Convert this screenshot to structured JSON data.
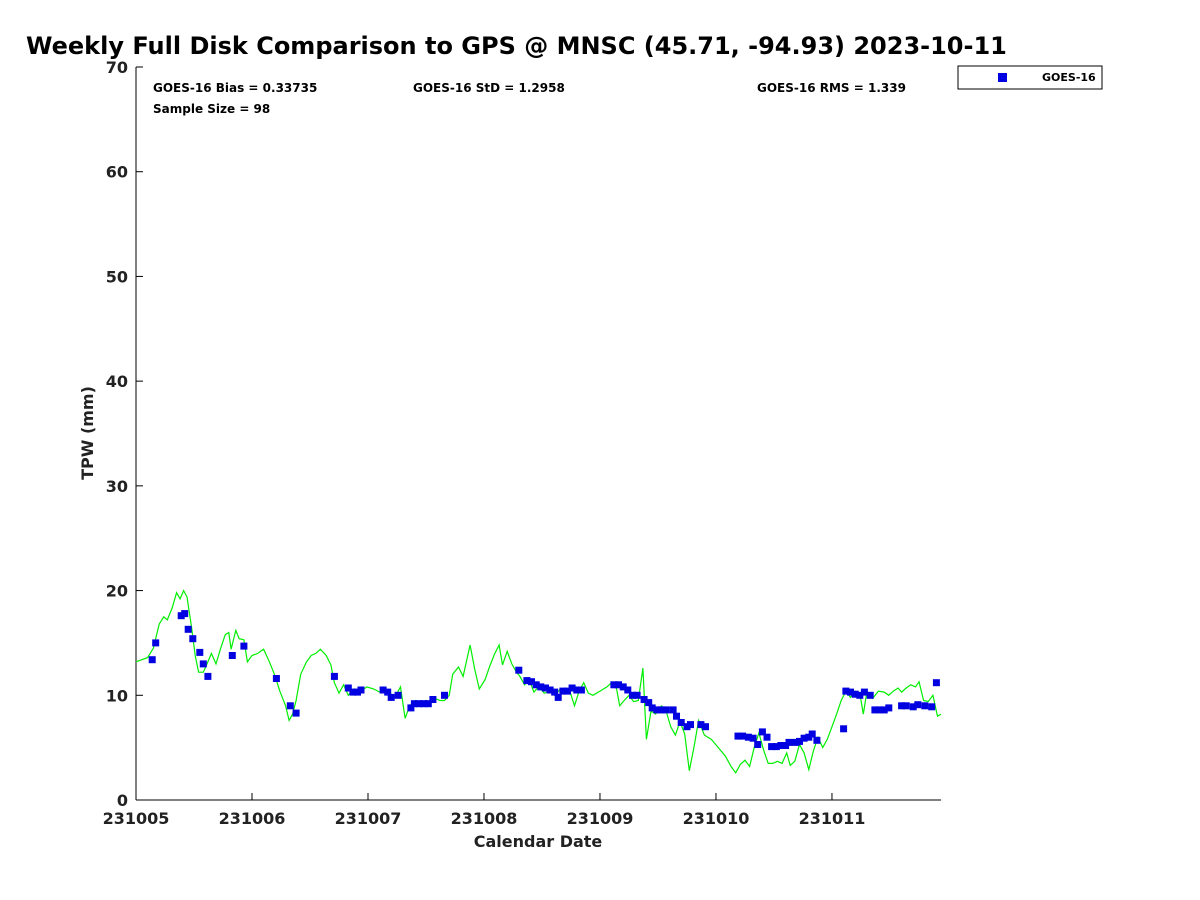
{
  "chart_data": {
    "type": "scatter",
    "title": "Weekly Full Disk Comparison to GPS @ MNSC (45.71, -94.93) 2023-10-11",
    "xlabel": "Calendar Date",
    "ylabel": "TPW (mm)",
    "xlim": [
      0,
      6.94
    ],
    "ylim": [
      0,
      70
    ],
    "x_tick_values": [
      0,
      1,
      2,
      3,
      4,
      5,
      6
    ],
    "x_tick_labels": [
      "231005",
      "231006",
      "231007",
      "231008",
      "231009",
      "231010",
      "231011"
    ],
    "y_ticks": [
      0,
      10,
      20,
      30,
      40,
      50,
      60,
      70
    ],
    "grid": false,
    "legend_position": "top-right",
    "stats": {
      "bias": "GOES-16 Bias = 0.33735",
      "std": "GOES-16 StD = 1.2958",
      "rms": "GOES-16 RMS = 1.339",
      "sample_size": "Sample Size = 98"
    },
    "series": [
      {
        "name": "GOES-16",
        "marker": "square",
        "color": "#0000e0",
        "points": [
          [
            0.14,
            13.4
          ],
          [
            0.17,
            15.0
          ],
          [
            0.39,
            17.6
          ],
          [
            0.42,
            17.8
          ],
          [
            0.45,
            16.3
          ],
          [
            0.49,
            15.4
          ],
          [
            0.55,
            14.1
          ],
          [
            0.58,
            13.0
          ],
          [
            0.62,
            11.8
          ],
          [
            0.83,
            13.8
          ],
          [
            0.93,
            14.7
          ],
          [
            1.21,
            11.6
          ],
          [
            1.33,
            9.0
          ],
          [
            1.38,
            8.3
          ],
          [
            1.71,
            11.8
          ],
          [
            1.83,
            10.7
          ],
          [
            1.87,
            10.3
          ],
          [
            1.91,
            10.3
          ],
          [
            1.94,
            10.5
          ],
          [
            2.13,
            10.5
          ],
          [
            2.17,
            10.3
          ],
          [
            2.2,
            9.8
          ],
          [
            2.26,
            10.0
          ],
          [
            2.37,
            8.8
          ],
          [
            2.4,
            9.2
          ],
          [
            2.44,
            9.2
          ],
          [
            2.48,
            9.2
          ],
          [
            2.52,
            9.2
          ],
          [
            2.56,
            9.6
          ],
          [
            2.66,
            10.0
          ],
          [
            3.3,
            12.4
          ],
          [
            3.37,
            11.4
          ],
          [
            3.41,
            11.3
          ],
          [
            3.45,
            11.0
          ],
          [
            3.49,
            10.8
          ],
          [
            3.53,
            10.7
          ],
          [
            3.57,
            10.5
          ],
          [
            3.61,
            10.3
          ],
          [
            3.64,
            9.8
          ],
          [
            3.68,
            10.4
          ],
          [
            3.72,
            10.4
          ],
          [
            3.76,
            10.7
          ],
          [
            3.8,
            10.5
          ],
          [
            3.84,
            10.5
          ],
          [
            4.12,
            11.0
          ],
          [
            4.16,
            11.0
          ],
          [
            4.2,
            10.8
          ],
          [
            4.24,
            10.5
          ],
          [
            4.28,
            10.0
          ],
          [
            4.32,
            10.0
          ],
          [
            4.38,
            9.6
          ],
          [
            4.42,
            9.3
          ],
          [
            4.45,
            8.8
          ],
          [
            4.49,
            8.6
          ],
          [
            4.53,
            8.6
          ],
          [
            4.57,
            8.6
          ],
          [
            4.63,
            8.6
          ],
          [
            4.66,
            8.0
          ],
          [
            4.7,
            7.4
          ],
          [
            4.75,
            7.0
          ],
          [
            4.78,
            7.2
          ],
          [
            4.87,
            7.2
          ],
          [
            4.91,
            7.0
          ],
          [
            5.19,
            6.1
          ],
          [
            5.23,
            6.1
          ],
          [
            5.28,
            6.0
          ],
          [
            5.32,
            5.9
          ],
          [
            5.36,
            5.3
          ],
          [
            5.4,
            6.5
          ],
          [
            5.44,
            6.0
          ],
          [
            5.48,
            5.1
          ],
          [
            5.52,
            5.1
          ],
          [
            5.56,
            5.2
          ],
          [
            5.6,
            5.2
          ],
          [
            5.63,
            5.5
          ],
          [
            5.69,
            5.5
          ],
          [
            5.72,
            5.6
          ],
          [
            5.76,
            5.9
          ],
          [
            5.8,
            6.0
          ],
          [
            5.83,
            6.3
          ],
          [
            5.87,
            5.7
          ],
          [
            6.1,
            6.8
          ],
          [
            6.12,
            10.4
          ],
          [
            6.16,
            10.3
          ],
          [
            6.2,
            10.1
          ],
          [
            6.24,
            10.0
          ],
          [
            6.28,
            10.3
          ],
          [
            6.33,
            10.0
          ],
          [
            6.37,
            8.6
          ],
          [
            6.41,
            8.6
          ],
          [
            6.45,
            8.6
          ],
          [
            6.49,
            8.8
          ],
          [
            6.6,
            9.0
          ],
          [
            6.64,
            9.0
          ],
          [
            6.7,
            8.9
          ],
          [
            6.74,
            9.1
          ],
          [
            6.8,
            9.0
          ],
          [
            6.86,
            8.9
          ],
          [
            6.9,
            11.2
          ]
        ]
      },
      {
        "name": "",
        "type": "line",
        "color": "#00ee00",
        "points": [
          [
            0.0,
            13.2
          ],
          [
            0.1,
            13.6
          ],
          [
            0.15,
            14.5
          ],
          [
            0.2,
            16.8
          ],
          [
            0.24,
            17.5
          ],
          [
            0.27,
            17.2
          ],
          [
            0.31,
            18.3
          ],
          [
            0.35,
            19.8
          ],
          [
            0.38,
            19.2
          ],
          [
            0.41,
            20.0
          ],
          [
            0.44,
            19.4
          ],
          [
            0.48,
            16.4
          ],
          [
            0.51,
            13.8
          ],
          [
            0.54,
            12.2
          ],
          [
            0.58,
            12.2
          ],
          [
            0.62,
            13.2
          ],
          [
            0.65,
            14.0
          ],
          [
            0.69,
            13.0
          ],
          [
            0.73,
            14.5
          ],
          [
            0.77,
            15.8
          ],
          [
            0.8,
            16.0
          ],
          [
            0.82,
            14.4
          ],
          [
            0.86,
            16.2
          ],
          [
            0.89,
            15.4
          ],
          [
            0.93,
            15.3
          ],
          [
            0.96,
            13.2
          ],
          [
            1.0,
            13.8
          ],
          [
            1.05,
            14.0
          ],
          [
            1.1,
            14.4
          ],
          [
            1.15,
            13.2
          ],
          [
            1.2,
            11.8
          ],
          [
            1.24,
            10.4
          ],
          [
            1.29,
            9.0
          ],
          [
            1.32,
            7.6
          ],
          [
            1.35,
            8.2
          ],
          [
            1.38,
            9.5
          ],
          [
            1.42,
            12.0
          ],
          [
            1.47,
            13.2
          ],
          [
            1.51,
            13.8
          ],
          [
            1.55,
            14.0
          ],
          [
            1.59,
            14.4
          ],
          [
            1.64,
            13.8
          ],
          [
            1.68,
            12.9
          ],
          [
            1.71,
            11.2
          ],
          [
            1.75,
            10.2
          ],
          [
            1.79,
            11.0
          ],
          [
            1.83,
            10.0
          ],
          [
            1.88,
            10.6
          ],
          [
            1.93,
            10.3
          ],
          [
            1.99,
            10.8
          ],
          [
            2.05,
            10.6
          ],
          [
            2.1,
            10.3
          ],
          [
            2.14,
            10.6
          ],
          [
            2.18,
            10.3
          ],
          [
            2.23,
            9.8
          ],
          [
            2.28,
            10.8
          ],
          [
            2.32,
            7.8
          ],
          [
            2.36,
            9.0
          ],
          [
            2.41,
            9.5
          ],
          [
            2.45,
            9.0
          ],
          [
            2.5,
            9.5
          ],
          [
            2.54,
            9.3
          ],
          [
            2.58,
            9.7
          ],
          [
            2.62,
            9.5
          ],
          [
            2.66,
            9.5
          ],
          [
            2.7,
            10.0
          ],
          [
            2.73,
            12.0
          ],
          [
            2.78,
            12.7
          ],
          [
            2.82,
            11.8
          ],
          [
            2.88,
            14.8
          ],
          [
            2.92,
            12.5
          ],
          [
            2.96,
            10.6
          ],
          [
            3.01,
            11.5
          ],
          [
            3.05,
            12.8
          ],
          [
            3.09,
            13.9
          ],
          [
            3.13,
            14.8
          ],
          [
            3.16,
            12.9
          ],
          [
            3.2,
            14.2
          ],
          [
            3.24,
            13.0
          ],
          [
            3.28,
            12.2
          ],
          [
            3.31,
            11.8
          ],
          [
            3.35,
            11.0
          ],
          [
            3.39,
            11.5
          ],
          [
            3.43,
            10.3
          ],
          [
            3.47,
            10.8
          ],
          [
            3.52,
            10.2
          ],
          [
            3.57,
            10.4
          ],
          [
            3.61,
            10.0
          ],
          [
            3.66,
            10.6
          ],
          [
            3.7,
            10.2
          ],
          [
            3.74,
            10.4
          ],
          [
            3.78,
            9.0
          ],
          [
            3.82,
            10.4
          ],
          [
            3.86,
            11.2
          ],
          [
            3.9,
            10.2
          ],
          [
            3.94,
            10.0
          ],
          [
            4.0,
            10.4
          ],
          [
            4.06,
            10.8
          ],
          [
            4.1,
            11.2
          ],
          [
            4.14,
            10.8
          ],
          [
            4.17,
            9.0
          ],
          [
            4.2,
            9.4
          ],
          [
            4.25,
            10.0
          ],
          [
            4.29,
            9.4
          ],
          [
            4.33,
            9.5
          ],
          [
            4.37,
            12.6
          ],
          [
            4.4,
            5.8
          ],
          [
            4.44,
            8.5
          ],
          [
            4.48,
            8.2
          ],
          [
            4.53,
            9.0
          ],
          [
            4.57,
            8.5
          ],
          [
            4.61,
            7.0
          ],
          [
            4.65,
            6.2
          ],
          [
            4.69,
            7.5
          ],
          [
            4.73,
            6.3
          ],
          [
            4.77,
            2.8
          ],
          [
            4.81,
            5.0
          ],
          [
            4.85,
            7.6
          ],
          [
            4.9,
            6.2
          ],
          [
            4.96,
            5.8
          ],
          [
            5.02,
            5.0
          ],
          [
            5.08,
            4.2
          ],
          [
            5.13,
            3.2
          ],
          [
            5.17,
            2.6
          ],
          [
            5.21,
            3.4
          ],
          [
            5.25,
            3.8
          ],
          [
            5.29,
            3.2
          ],
          [
            5.33,
            5.0
          ],
          [
            5.37,
            6.4
          ],
          [
            5.41,
            4.8
          ],
          [
            5.45,
            3.5
          ],
          [
            5.49,
            3.5
          ],
          [
            5.53,
            3.7
          ],
          [
            5.57,
            3.5
          ],
          [
            5.61,
            4.5
          ],
          [
            5.64,
            3.3
          ],
          [
            5.68,
            3.7
          ],
          [
            5.72,
            5.3
          ],
          [
            5.76,
            4.5
          ],
          [
            5.8,
            2.9
          ],
          [
            5.84,
            4.7
          ],
          [
            5.88,
            6.0
          ],
          [
            5.92,
            5.0
          ],
          [
            5.96,
            5.8
          ],
          [
            6.0,
            7.0
          ],
          [
            6.04,
            8.2
          ],
          [
            6.08,
            9.5
          ],
          [
            6.12,
            10.4
          ],
          [
            6.16,
            9.8
          ],
          [
            6.2,
            10.4
          ],
          [
            6.24,
            10.2
          ],
          [
            6.27,
            8.2
          ],
          [
            6.3,
            10.3
          ],
          [
            6.35,
            9.7
          ],
          [
            6.4,
            10.4
          ],
          [
            6.45,
            10.3
          ],
          [
            6.49,
            10.0
          ],
          [
            6.53,
            10.4
          ],
          [
            6.57,
            10.7
          ],
          [
            6.6,
            10.3
          ],
          [
            6.64,
            10.7
          ],
          [
            6.68,
            11.0
          ],
          [
            6.72,
            10.8
          ],
          [
            6.75,
            11.3
          ],
          [
            6.79,
            9.5
          ],
          [
            6.83,
            9.4
          ],
          [
            6.87,
            10.0
          ],
          [
            6.91,
            8.0
          ],
          [
            6.94,
            8.2
          ]
        ]
      }
    ]
  }
}
